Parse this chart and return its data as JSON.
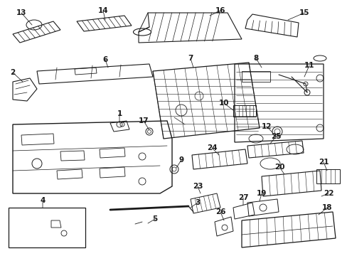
{
  "bg_color": "#ffffff",
  "fig_width": 4.89,
  "fig_height": 3.6,
  "dpi": 100,
  "lc": "#1a1a1a",
  "tc": "#1a1a1a",
  "fs": 7.5,
  "xlim": [
    0,
    489
  ],
  "ylim": [
    0,
    360
  ]
}
